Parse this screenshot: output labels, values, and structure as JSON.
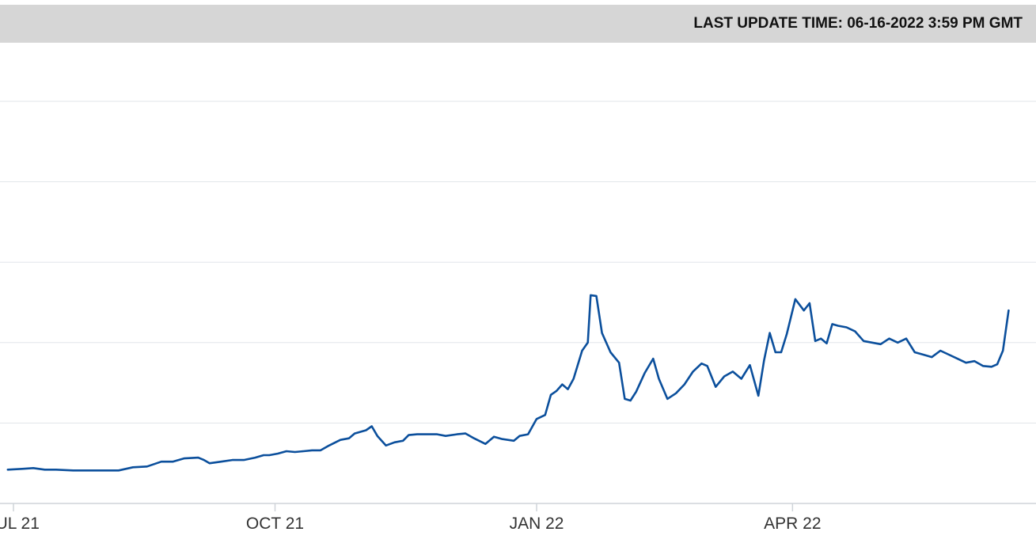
{
  "header": {
    "last_update": "LAST UPDATE TIME: 06-16-2022 3:59 PM GMT"
  },
  "chart_data": {
    "type": "line",
    "title": "",
    "xlabel": "",
    "ylabel": "",
    "ylim": [
      0,
      5
    ],
    "grid": true,
    "x_ticks": [
      "JUL 21",
      "OCT 21",
      "JAN 22",
      "APR 22"
    ],
    "x_tick_dates": [
      "2021-07-01",
      "2021-10-01",
      "2022-01-01",
      "2022-04-01"
    ],
    "colors": {
      "line": "#0b4f9c",
      "grid": "#e1e5ea",
      "axis": "#cfd4d9"
    },
    "series": [
      {
        "name": "",
        "points": [
          [
            "2021-06-29",
            0.42
          ],
          [
            "2021-07-04",
            0.43
          ],
          [
            "2021-07-08",
            0.44
          ],
          [
            "2021-07-12",
            0.42
          ],
          [
            "2021-07-16",
            0.42
          ],
          [
            "2021-07-22",
            0.41
          ],
          [
            "2021-07-28",
            0.41
          ],
          [
            "2021-08-03",
            0.41
          ],
          [
            "2021-08-07",
            0.41
          ],
          [
            "2021-08-12",
            0.45
          ],
          [
            "2021-08-17",
            0.46
          ],
          [
            "2021-08-22",
            0.52
          ],
          [
            "2021-08-26",
            0.52
          ],
          [
            "2021-08-30",
            0.56
          ],
          [
            "2021-09-04",
            0.57
          ],
          [
            "2021-09-06",
            0.54
          ],
          [
            "2021-09-08",
            0.5
          ],
          [
            "2021-09-12",
            0.52
          ],
          [
            "2021-09-16",
            0.54
          ],
          [
            "2021-09-20",
            0.54
          ],
          [
            "2021-09-24",
            0.57
          ],
          [
            "2021-09-27",
            0.6
          ],
          [
            "2021-09-29",
            0.6
          ],
          [
            "2021-10-02",
            0.62
          ],
          [
            "2021-10-05",
            0.65
          ],
          [
            "2021-10-08",
            0.64
          ],
          [
            "2021-10-11",
            0.65
          ],
          [
            "2021-10-14",
            0.66
          ],
          [
            "2021-10-17",
            0.66
          ],
          [
            "2021-10-20",
            0.72
          ],
          [
            "2021-10-24",
            0.79
          ],
          [
            "2021-10-27",
            0.81
          ],
          [
            "2021-10-29",
            0.87
          ],
          [
            "2021-11-02",
            0.91
          ],
          [
            "2021-11-04",
            0.96
          ],
          [
            "2021-11-06",
            0.84
          ],
          [
            "2021-11-09",
            0.72
          ],
          [
            "2021-11-12",
            0.76
          ],
          [
            "2021-11-15",
            0.78
          ],
          [
            "2021-11-17",
            0.85
          ],
          [
            "2021-11-20",
            0.86
          ],
          [
            "2021-11-23",
            0.86
          ],
          [
            "2021-11-27",
            0.86
          ],
          [
            "2021-11-30",
            0.84
          ],
          [
            "2021-12-04",
            0.86
          ],
          [
            "2021-12-07",
            0.87
          ],
          [
            "2021-12-10",
            0.81
          ],
          [
            "2021-12-14",
            0.74
          ],
          [
            "2021-12-17",
            0.83
          ],
          [
            "2021-12-20",
            0.8
          ],
          [
            "2021-12-24",
            0.78
          ],
          [
            "2021-12-26",
            0.84
          ],
          [
            "2021-12-29",
            0.86
          ],
          [
            "2022-01-01",
            1.05
          ],
          [
            "2022-01-04",
            1.1
          ],
          [
            "2022-01-06",
            1.35
          ],
          [
            "2022-01-08",
            1.4
          ],
          [
            "2022-01-10",
            1.48
          ],
          [
            "2022-01-12",
            1.42
          ],
          [
            "2022-01-14",
            1.55
          ],
          [
            "2022-01-17",
            1.9
          ],
          [
            "2022-01-19",
            2.0
          ],
          [
            "2022-01-20",
            2.59
          ],
          [
            "2022-01-22",
            2.58
          ],
          [
            "2022-01-24",
            2.12
          ],
          [
            "2022-01-27",
            1.88
          ],
          [
            "2022-01-30",
            1.75
          ],
          [
            "2022-02-01",
            1.3
          ],
          [
            "2022-02-03",
            1.28
          ],
          [
            "2022-02-05",
            1.39
          ],
          [
            "2022-02-08",
            1.62
          ],
          [
            "2022-02-11",
            1.8
          ],
          [
            "2022-02-13",
            1.55
          ],
          [
            "2022-02-16",
            1.3
          ],
          [
            "2022-02-19",
            1.37
          ],
          [
            "2022-02-22",
            1.48
          ],
          [
            "2022-02-25",
            1.64
          ],
          [
            "2022-02-28",
            1.74
          ],
          [
            "2022-03-02",
            1.71
          ],
          [
            "2022-03-05",
            1.45
          ],
          [
            "2022-03-08",
            1.58
          ],
          [
            "2022-03-11",
            1.64
          ],
          [
            "2022-03-14",
            1.55
          ],
          [
            "2022-03-17",
            1.72
          ],
          [
            "2022-03-20",
            1.34
          ],
          [
            "2022-03-22",
            1.78
          ],
          [
            "2022-03-24",
            2.12
          ],
          [
            "2022-03-26",
            1.88
          ],
          [
            "2022-03-28",
            1.88
          ],
          [
            "2022-03-30",
            2.11
          ],
          [
            "2022-04-02",
            2.54
          ],
          [
            "2022-04-05",
            2.4
          ],
          [
            "2022-04-07",
            2.49
          ],
          [
            "2022-04-09",
            2.02
          ],
          [
            "2022-04-11",
            2.05
          ],
          [
            "2022-04-13",
            1.99
          ],
          [
            "2022-04-15",
            2.23
          ],
          [
            "2022-04-17",
            2.21
          ],
          [
            "2022-04-20",
            2.19
          ],
          [
            "2022-04-23",
            2.14
          ],
          [
            "2022-04-26",
            2.02
          ],
          [
            "2022-04-29",
            2.0
          ],
          [
            "2022-05-02",
            1.98
          ],
          [
            "2022-05-05",
            2.05
          ],
          [
            "2022-05-08",
            2.0
          ],
          [
            "2022-05-11",
            2.05
          ],
          [
            "2022-05-14",
            1.88
          ],
          [
            "2022-05-17",
            1.85
          ],
          [
            "2022-05-20",
            1.82
          ],
          [
            "2022-05-23",
            1.9
          ],
          [
            "2022-05-26",
            1.85
          ],
          [
            "2022-05-29",
            1.8
          ],
          [
            "2022-06-01",
            1.75
          ],
          [
            "2022-06-04",
            1.77
          ],
          [
            "2022-06-07",
            1.71
          ],
          [
            "2022-06-10",
            1.7
          ],
          [
            "2022-06-12",
            1.73
          ],
          [
            "2022-06-14",
            1.9
          ],
          [
            "2022-06-16",
            2.4
          ]
        ]
      }
    ]
  }
}
